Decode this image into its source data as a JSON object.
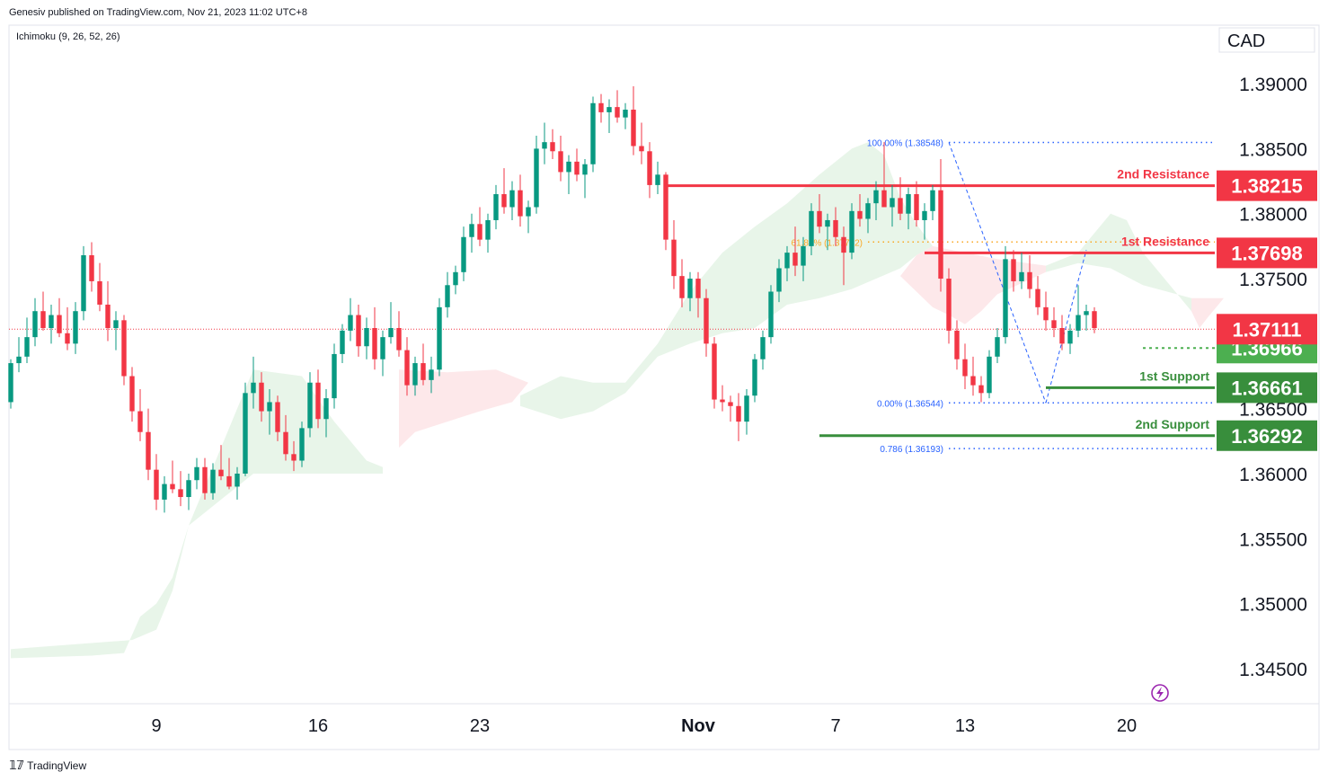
{
  "header": {
    "publisher": "Genesiv published on TradingView.com, Nov 21, 2023 11:02 UTC+8"
  },
  "indicator": {
    "label": "Ichimoku (9, 26, 52, 26)"
  },
  "currency": "CAD",
  "footer": {
    "brand": "TradingView",
    "logo": "tradingview-logo-icon"
  },
  "colors": {
    "bull": "#089981",
    "bear": "#f23645",
    "resistance": "#f23645",
    "support": "#388e3c",
    "support_lite": "#4caf50",
    "cloud_bull": "#e8f5e9",
    "cloud_bear": "#fde8ea",
    "fib": "#2962ff"
  },
  "chart_data": {
    "type": "candlestick",
    "ylim": [
      1.3423,
      1.3945
    ],
    "y_ticks": [
      "1.39000",
      "1.38500",
      "1.38000",
      "1.37500",
      "1.36500",
      "1.36000",
      "1.35500",
      "1.35000",
      "1.34500"
    ],
    "x_ticks": [
      {
        "label": "9",
        "bar": 18
      },
      {
        "label": "16",
        "bar": 38
      },
      {
        "label": "23",
        "bar": 58
      },
      {
        "label": "Nov",
        "bar": 85,
        "bold": true
      },
      {
        "label": "7",
        "bar": 102
      },
      {
        "label": "13",
        "bar": 118
      },
      {
        "label": "20",
        "bar": 138
      }
    ],
    "candles": [
      [
        1.3655,
        1.3688,
        1.365,
        1.3685
      ],
      [
        1.3685,
        1.3705,
        1.3678,
        1.369
      ],
      [
        1.369,
        1.372,
        1.3685,
        1.3705
      ],
      [
        1.3705,
        1.3735,
        1.3698,
        1.3725
      ],
      [
        1.3725,
        1.374,
        1.371,
        1.3712
      ],
      [
        1.3712,
        1.373,
        1.37,
        1.3722
      ],
      [
        1.3722,
        1.3735,
        1.3705,
        1.3708
      ],
      [
        1.3708,
        1.3728,
        1.3695,
        1.37
      ],
      [
        1.37,
        1.3732,
        1.3692,
        1.3725
      ],
      [
        1.3725,
        1.3775,
        1.3718,
        1.3768
      ],
      [
        1.3768,
        1.3778,
        1.374,
        1.3748
      ],
      [
        1.3748,
        1.3762,
        1.3725,
        1.373
      ],
      [
        1.373,
        1.3748,
        1.3702,
        1.3712
      ],
      [
        1.3712,
        1.3725,
        1.3695,
        1.3718
      ],
      [
        1.3718,
        1.3722,
        1.3668,
        1.3675
      ],
      [
        1.3675,
        1.3682,
        1.364,
        1.3648
      ],
      [
        1.3648,
        1.3665,
        1.3625,
        1.3632
      ],
      [
        1.3632,
        1.365,
        1.3595,
        1.3603
      ],
      [
        1.3603,
        1.3615,
        1.3572,
        1.358
      ],
      [
        1.358,
        1.3598,
        1.357,
        1.3592
      ],
      [
        1.3592,
        1.361,
        1.3585,
        1.3588
      ],
      [
        1.3588,
        1.3602,
        1.3575,
        1.3582
      ],
      [
        1.3582,
        1.36,
        1.3572,
        1.3595
      ],
      [
        1.3595,
        1.3612,
        1.3588,
        1.3605
      ],
      [
        1.3605,
        1.3612,
        1.358,
        1.3585
      ],
      [
        1.3585,
        1.3608,
        1.358,
        1.3603
      ],
      [
        1.3603,
        1.3622,
        1.3595,
        1.3598
      ],
      [
        1.3598,
        1.3612,
        1.3588,
        1.359
      ],
      [
        1.359,
        1.3605,
        1.358,
        1.36
      ],
      [
        1.36,
        1.367,
        1.3598,
        1.3662
      ],
      [
        1.3662,
        1.369,
        1.365,
        1.367
      ],
      [
        1.367,
        1.3678,
        1.364,
        1.3648
      ],
      [
        1.3648,
        1.3665,
        1.363,
        1.3655
      ],
      [
        1.3655,
        1.366,
        1.3625,
        1.3632
      ],
      [
        1.3632,
        1.3645,
        1.361,
        1.3615
      ],
      [
        1.3615,
        1.3625,
        1.3602,
        1.361
      ],
      [
        1.361,
        1.364,
        1.3605,
        1.3635
      ],
      [
        1.3635,
        1.3678,
        1.3628,
        1.367
      ],
      [
        1.367,
        1.368,
        1.3635,
        1.3642
      ],
      [
        1.3642,
        1.3665,
        1.3628,
        1.3658
      ],
      [
        1.3658,
        1.37,
        1.365,
        1.3692
      ],
      [
        1.3692,
        1.3715,
        1.3685,
        1.371
      ],
      [
        1.371,
        1.3735,
        1.3702,
        1.3722
      ],
      [
        1.3722,
        1.373,
        1.369,
        1.3698
      ],
      [
        1.3698,
        1.372,
        1.3688,
        1.3712
      ],
      [
        1.3712,
        1.3728,
        1.368,
        1.3688
      ],
      [
        1.3688,
        1.371,
        1.3675,
        1.3705
      ],
      [
        1.3705,
        1.3732,
        1.37,
        1.3712
      ],
      [
        1.3712,
        1.3725,
        1.369,
        1.3695
      ],
      [
        1.3695,
        1.3705,
        1.366,
        1.3668
      ],
      [
        1.3668,
        1.369,
        1.366,
        1.3685
      ],
      [
        1.3685,
        1.37,
        1.3668,
        1.3672
      ],
      [
        1.3672,
        1.369,
        1.3662,
        1.368
      ],
      [
        1.368,
        1.3735,
        1.3675,
        1.3728
      ],
      [
        1.3728,
        1.3755,
        1.372,
        1.3745
      ],
      [
        1.3745,
        1.376,
        1.3738,
        1.3755
      ],
      [
        1.3755,
        1.379,
        1.3748,
        1.3782
      ],
      [
        1.3782,
        1.38,
        1.377,
        1.3792
      ],
      [
        1.3792,
        1.3805,
        1.3775,
        1.378
      ],
      [
        1.378,
        1.38,
        1.377,
        1.3795
      ],
      [
        1.3795,
        1.3822,
        1.3788,
        1.3815
      ],
      [
        1.3815,
        1.3835,
        1.38,
        1.3805
      ],
      [
        1.3805,
        1.3825,
        1.3795,
        1.3818
      ],
      [
        1.3818,
        1.383,
        1.379,
        1.3798
      ],
      [
        1.3798,
        1.381,
        1.3785,
        1.3805
      ],
      [
        1.3805,
        1.386,
        1.38,
        1.385
      ],
      [
        1.385,
        1.387,
        1.3838,
        1.3855
      ],
      [
        1.3855,
        1.3865,
        1.3842,
        1.3848
      ],
      [
        1.3848,
        1.386,
        1.3825,
        1.3832
      ],
      [
        1.3832,
        1.3845,
        1.3815,
        1.384
      ],
      [
        1.384,
        1.385,
        1.3825,
        1.383
      ],
      [
        1.383,
        1.3842,
        1.3812,
        1.3838
      ],
      [
        1.3838,
        1.389,
        1.3832,
        1.3885
      ],
      [
        1.3885,
        1.3892,
        1.387,
        1.3878
      ],
      [
        1.3878,
        1.3888,
        1.3862,
        1.3882
      ],
      [
        1.3882,
        1.3895,
        1.387,
        1.3874
      ],
      [
        1.3874,
        1.3885,
        1.3865,
        1.388
      ],
      [
        1.388,
        1.3898,
        1.3845,
        1.3852
      ],
      [
        1.3852,
        1.387,
        1.3838,
        1.3848
      ],
      [
        1.3848,
        1.3855,
        1.3812,
        1.3822
      ],
      [
        1.3822,
        1.384,
        1.3815,
        1.383
      ],
      [
        1.383,
        1.3832,
        1.3772,
        1.378
      ],
      [
        1.378,
        1.3795,
        1.3742,
        1.3752
      ],
      [
        1.3752,
        1.3765,
        1.3728,
        1.3735
      ],
      [
        1.3735,
        1.3755,
        1.3725,
        1.375
      ],
      [
        1.375,
        1.3755,
        1.372,
        1.3735
      ],
      [
        1.3735,
        1.3742,
        1.369,
        1.37
      ],
      [
        1.37,
        1.3705,
        1.365,
        1.3657
      ],
      [
        1.3657,
        1.3668,
        1.3648,
        1.3655
      ],
      [
        1.3655,
        1.366,
        1.364,
        1.3652
      ],
      [
        1.3652,
        1.3662,
        1.3625,
        1.364
      ],
      [
        1.364,
        1.3665,
        1.363,
        1.366
      ],
      [
        1.366,
        1.3692,
        1.3655,
        1.3688
      ],
      [
        1.3688,
        1.371,
        1.368,
        1.3705
      ],
      [
        1.3705,
        1.3745,
        1.37,
        1.374
      ],
      [
        1.374,
        1.3765,
        1.3732,
        1.3758
      ],
      [
        1.3758,
        1.3775,
        1.3748,
        1.377
      ],
      [
        1.377,
        1.379,
        1.3752,
        1.376
      ],
      [
        1.376,
        1.3782,
        1.3748,
        1.3775
      ],
      [
        1.3775,
        1.3808,
        1.3768,
        1.3802
      ],
      [
        1.3802,
        1.3815,
        1.3785,
        1.379
      ],
      [
        1.379,
        1.38,
        1.3772,
        1.3795
      ],
      [
        1.3795,
        1.3805,
        1.3775,
        1.3782
      ],
      [
        1.3782,
        1.379,
        1.3745,
        1.377
      ],
      [
        1.377,
        1.3808,
        1.3765,
        1.3802
      ],
      [
        1.3802,
        1.3815,
        1.379,
        1.3796
      ],
      [
        1.3796,
        1.3812,
        1.3785,
        1.3808
      ],
      [
        1.3808,
        1.3825,
        1.3795,
        1.3818
      ],
      [
        1.3818,
        1.3855,
        1.381,
        1.3805
      ],
      [
        1.3805,
        1.3822,
        1.379,
        1.3812
      ],
      [
        1.3812,
        1.3828,
        1.3795,
        1.38
      ],
      [
        1.38,
        1.382,
        1.3788,
        1.3815
      ],
      [
        1.3815,
        1.3825,
        1.379,
        1.3795
      ],
      [
        1.3795,
        1.3808,
        1.378,
        1.3802
      ],
      [
        1.3802,
        1.3822,
        1.3795,
        1.3818
      ],
      [
        1.3818,
        1.3842,
        1.374,
        1.375
      ],
      [
        1.375,
        1.3758,
        1.37,
        1.371
      ],
      [
        1.371,
        1.3718,
        1.368,
        1.3688
      ],
      [
        1.3688,
        1.37,
        1.3665,
        1.3675
      ],
      [
        1.3675,
        1.369,
        1.366,
        1.3668
      ],
      [
        1.3668,
        1.3675,
        1.3655,
        1.3662
      ],
      [
        1.3662,
        1.3695,
        1.3658,
        1.369
      ],
      [
        1.369,
        1.3712,
        1.3685,
        1.3705
      ],
      [
        1.3705,
        1.3775,
        1.37,
        1.3765
      ],
      [
        1.3765,
        1.3772,
        1.374,
        1.3748
      ],
      [
        1.3748,
        1.377,
        1.3742,
        1.3755
      ],
      [
        1.3755,
        1.3768,
        1.3735,
        1.3742
      ],
      [
        1.3742,
        1.3752,
        1.3722,
        1.3728
      ],
      [
        1.3728,
        1.374,
        1.371,
        1.3718
      ],
      [
        1.3718,
        1.3728,
        1.3705,
        1.3712
      ],
      [
        1.3712,
        1.3722,
        1.3695,
        1.37
      ],
      [
        1.37,
        1.3715,
        1.3692,
        1.371
      ],
      [
        1.371,
        1.3745,
        1.3705,
        1.3722
      ],
      [
        1.3722,
        1.373,
        1.371,
        1.3725
      ],
      [
        1.3725,
        1.3728,
        1.3708,
        1.3712
      ]
    ],
    "cloud": {
      "bull": [
        [
          0,
          [
            [
              0,
              1.3465
            ],
            [
              15,
              1.3472
            ],
            [
              18,
              1.348
            ],
            [
              20,
              1.351
            ],
            [
              22,
              1.356
            ],
            [
              26,
              1.362
            ],
            [
              30,
              1.368
            ],
            [
              36,
              1.3675
            ],
            [
              40,
              1.364
            ],
            [
              44,
              1.361
            ],
            [
              46,
              1.3605
            ],
            [
              46,
              1.36
            ],
            [
              40,
              1.36
            ],
            [
              30,
              1.36
            ],
            [
              26,
              1.358
            ],
            [
              22,
              1.356
            ],
            [
              20,
              1.352
            ],
            [
              18,
              1.35
            ],
            [
              16,
              1.349
            ],
            [
              14,
              1.3462
            ],
            [
              10,
              1.346
            ],
            [
              0,
              1.3458
            ]
          ]
        ],
        [
          1,
          [
            [
              63,
              1.366
            ],
            [
              68,
              1.3675
            ],
            [
              72,
              1.367
            ],
            [
              76,
              1.367
            ],
            [
              80,
              1.37
            ],
            [
              84,
              1.374
            ],
            [
              88,
              1.377
            ],
            [
              92,
              1.379
            ],
            [
              96,
              1.3808
            ],
            [
              100,
              1.383
            ],
            [
              104,
              1.385
            ],
            [
              106,
              1.3855
            ],
            [
              108,
              1.3845
            ],
            [
              110,
              1.3812
            ],
            [
              112,
              1.3792
            ],
            [
              114,
              1.3775
            ],
            [
              112,
              1.3768
            ],
            [
              110,
              1.3758
            ],
            [
              104,
              1.3742
            ],
            [
              100,
              1.3735
            ],
            [
              96,
              1.373
            ],
            [
              92,
              1.3712
            ],
            [
              88,
              1.3708
            ],
            [
              84,
              1.37
            ],
            [
              80,
              1.369
            ],
            [
              76,
              1.3662
            ],
            [
              72,
              1.3648
            ],
            [
              68,
              1.3642
            ],
            [
              63,
              1.3652
            ]
          ]
        ],
        [
          2,
          [
            [
              128,
              1.376
            ],
            [
              132,
              1.377
            ],
            [
              134,
              1.3785
            ],
            [
              136,
              1.38
            ],
            [
              138,
              1.3795
            ],
            [
              140,
              1.377
            ],
            [
              144,
              1.374
            ],
            [
              146,
              1.3725
            ],
            [
              146,
              1.3735
            ],
            [
              140,
              1.3745
            ],
            [
              136,
              1.3758
            ],
            [
              132,
              1.3762
            ],
            [
              128,
              1.3755
            ]
          ]
        ]
      ],
      "bear": [
        [
          0,
          [
            [
              48,
              1.368
            ],
            [
              54,
              1.3678
            ],
            [
              60,
              1.368
            ],
            [
              64,
              1.367
            ],
            [
              62,
              1.3655
            ],
            [
              58,
              1.3648
            ],
            [
              54,
              1.364
            ],
            [
              50,
              1.3632
            ],
            [
              48,
              1.362
            ]
          ]
        ],
        [
          1,
          [
            [
              114,
              1.3775
            ],
            [
              118,
              1.377
            ],
            [
              122,
              1.3765
            ],
            [
              128,
              1.376
            ],
            [
              128,
              1.3755
            ],
            [
              122,
              1.3738
            ],
            [
              120,
              1.3725
            ],
            [
              118,
              1.3715
            ],
            [
              116,
              1.3722
            ],
            [
              114,
              1.3728
            ],
            [
              112,
              1.374
            ],
            [
              110,
              1.3752
            ],
            [
              112,
              1.3768
            ]
          ]
        ],
        [
          2,
          [
            [
              146,
              1.3735
            ],
            [
              150,
              1.3735
            ],
            [
              148,
              1.372
            ],
            [
              147,
              1.3712
            ],
            [
              146,
              1.3725
            ]
          ]
        ]
      ]
    },
    "fib": {
      "level_100": "100.00% (1.38548)",
      "level_618": "61.80% (1.37782)",
      "level_0": "0.00% (1.36544)",
      "level_786": "0.786 (1.36193)"
    },
    "last_price": 1.37111,
    "levels": [
      {
        "name": "2nd Resistance",
        "value": "1.38215",
        "kind": "resistance"
      },
      {
        "name": "1st Resistance",
        "value": "1.37698",
        "kind": "resistance"
      },
      {
        "name": "",
        "value": "1.36966",
        "kind": "support_lite"
      },
      {
        "name": "1st Support",
        "value": "1.36661",
        "kind": "support"
      },
      {
        "name": "2nd Support",
        "value": "1.36292",
        "kind": "support"
      }
    ],
    "price_tag": "1.37111"
  }
}
